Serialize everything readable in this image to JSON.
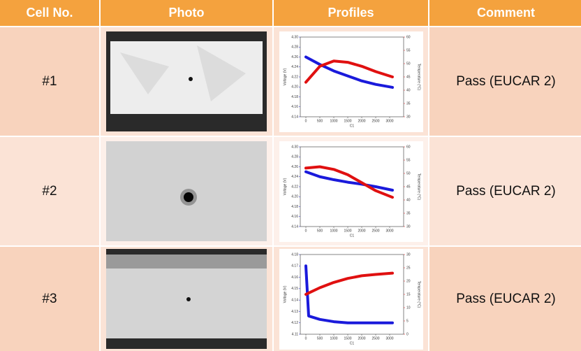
{
  "table": {
    "header": [
      "Cell No.",
      "Photo",
      "Profiles",
      "Comment"
    ],
    "rows": [
      {
        "cell": "#1",
        "comment": "Pass (EUCAR 2)",
        "profile": {
          "xlabel": "C1",
          "ylabel": "Voltage (V)",
          "y2label": "Temperature (°C)",
          "xlim": [
            -200,
            3500
          ],
          "xticks": [
            0,
            500,
            1000,
            1500,
            2000,
            2500,
            3000
          ],
          "ylim": [
            4.14,
            4.3
          ],
          "yticks": [
            4.14,
            4.16,
            4.18,
            {
              "value": 4.2,
              "label": "4.20"
            },
            4.22,
            4.24,
            4.26,
            4.28,
            {
              "value": 4.3,
              "label": "4.30"
            }
          ],
          "y2lim": [
            30,
            60
          ],
          "y2ticks": [
            30,
            35,
            40,
            45,
            50,
            55,
            60
          ],
          "x": [
            0,
            500,
            1000,
            1500,
            2000,
            2500,
            3100
          ],
          "series": [
            {
              "color": "#1a1adb",
              "values": [
                4.26,
                4.245,
                4.232,
                4.222,
                4.212,
                4.205,
                4.199
              ]
            },
            {
              "color": "#e01010",
              "axis": "y2",
              "values": [
                43,
                49,
                51,
                50.5,
                49,
                47,
                45
              ]
            }
          ]
        }
      },
      {
        "cell": "#2",
        "comment": "Pass (EUCAR 2)",
        "profile": {
          "xlabel": "C1",
          "ylabel": "Voltage (V)",
          "y2label": "Temperature (°C)",
          "xlim": [
            -200,
            3500
          ],
          "xticks": [
            0,
            500,
            1000,
            1500,
            2000,
            2500,
            3000
          ],
          "ylim": [
            4.14,
            4.3
          ],
          "yticks": [
            4.14,
            4.16,
            4.18,
            {
              "value": 4.2,
              "label": "4.20"
            },
            4.22,
            4.24,
            4.26,
            4.28,
            {
              "value": 4.3,
              "label": "4.30"
            }
          ],
          "y2lim": [
            30,
            60
          ],
          "y2ticks": [
            30,
            35,
            40,
            45,
            50,
            55,
            60
          ],
          "x": [
            0,
            500,
            1000,
            1500,
            2000,
            2500,
            3100
          ],
          "series": [
            {
              "color": "#1a1adb",
              "values": [
                4.25,
                4.24,
                4.234,
                4.229,
                4.225,
                4.22,
                4.213
              ]
            },
            {
              "color": "#e01010",
              "axis": "y2",
              "values": [
                52,
                52.5,
                51.5,
                49.5,
                46.5,
                43.5,
                41
              ]
            }
          ]
        }
      },
      {
        "cell": "#3",
        "comment": "Pass (EUCAR 2)",
        "profile": {
          "xlabel": "C1",
          "ylabel": "Voltage (V)",
          "y2label": "Temperature (°C)",
          "xlim": [
            -200,
            3500
          ],
          "xticks": [
            0,
            500,
            1000,
            1500,
            2000,
            2500,
            3000
          ],
          "ylim": [
            4.11,
            4.18
          ],
          "yticks": [
            4.11,
            4.12,
            4.13,
            4.14,
            4.15,
            4.16,
            4.17,
            4.18
          ],
          "y2lim": [
            0,
            30
          ],
          "y2ticks": [
            0,
            5,
            10,
            15,
            20,
            25,
            30
          ],
          "x": [
            0,
            100,
            500,
            1000,
            1500,
            2000,
            2500,
            3100
          ],
          "series": [
            {
              "color": "#1a1adb",
              "values": [
                4.17,
                4.126,
                4.123,
                4.121,
                4.12,
                4.12,
                4.12,
                4.12
              ]
            },
            {
              "color": "#e01010",
              "axis": "y2",
              "values": [
                15,
                15.5,
                17.5,
                19.5,
                21,
                22,
                22.5,
                23
              ]
            }
          ]
        }
      }
    ]
  }
}
